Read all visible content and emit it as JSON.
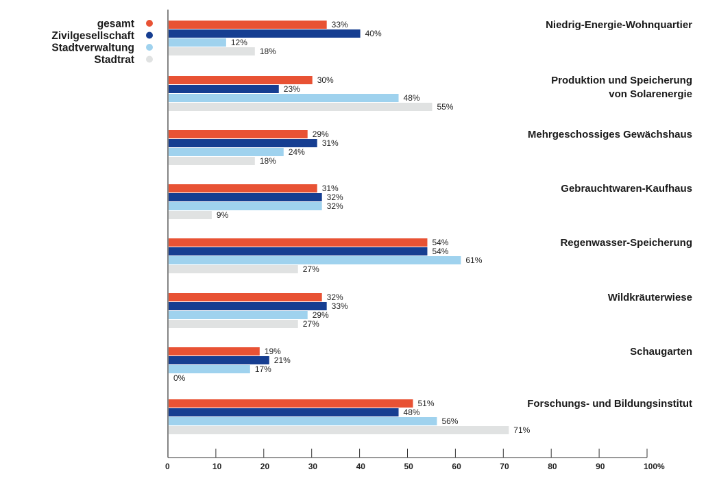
{
  "chart_data": {
    "type": "bar",
    "orientation": "horizontal",
    "title": "",
    "xlabel": "",
    "ylabel": "",
    "xlim": [
      0,
      100
    ],
    "x_ticks": [
      "0",
      "10",
      "20",
      "30",
      "40",
      "50",
      "60",
      "70",
      "80",
      "90",
      "100%"
    ],
    "x_tick_values": [
      0,
      10,
      20,
      30,
      40,
      50,
      60,
      70,
      80,
      90,
      100
    ],
    "grid": false,
    "legend_position": "top-left",
    "categories": [
      [
        "Niedrig-Energie-Wohnquartier"
      ],
      [
        "Produktion und Speicherung",
        "von Solarenergie"
      ],
      [
        "Mehrgeschossiges Gewächshaus"
      ],
      [
        "Gebrauchtwaren-Kaufhaus"
      ],
      [
        "Regenwasser-Speicherung"
      ],
      [
        "Wildkräuterwiese"
      ],
      [
        "Schaugarten"
      ],
      [
        "Forschungs- und Bildungsinstitut"
      ]
    ],
    "series": [
      {
        "name": "gesamt",
        "color": "#e85234",
        "values": [
          33,
          30,
          29,
          31,
          54,
          32,
          19,
          51
        ]
      },
      {
        "name": "Zivilgesellschaft",
        "color": "#163e91",
        "values": [
          40,
          23,
          31,
          32,
          54,
          33,
          21,
          48
        ]
      },
      {
        "name": "Stadtverwaltung",
        "color": "#9fd2ee",
        "values": [
          12,
          48,
          24,
          32,
          61,
          29,
          17,
          56
        ]
      },
      {
        "name": "Stadtrat",
        "color": "#e0e2e2",
        "values": [
          18,
          55,
          18,
          9,
          27,
          27,
          0,
          71
        ]
      }
    ],
    "value_suffix": "%"
  }
}
